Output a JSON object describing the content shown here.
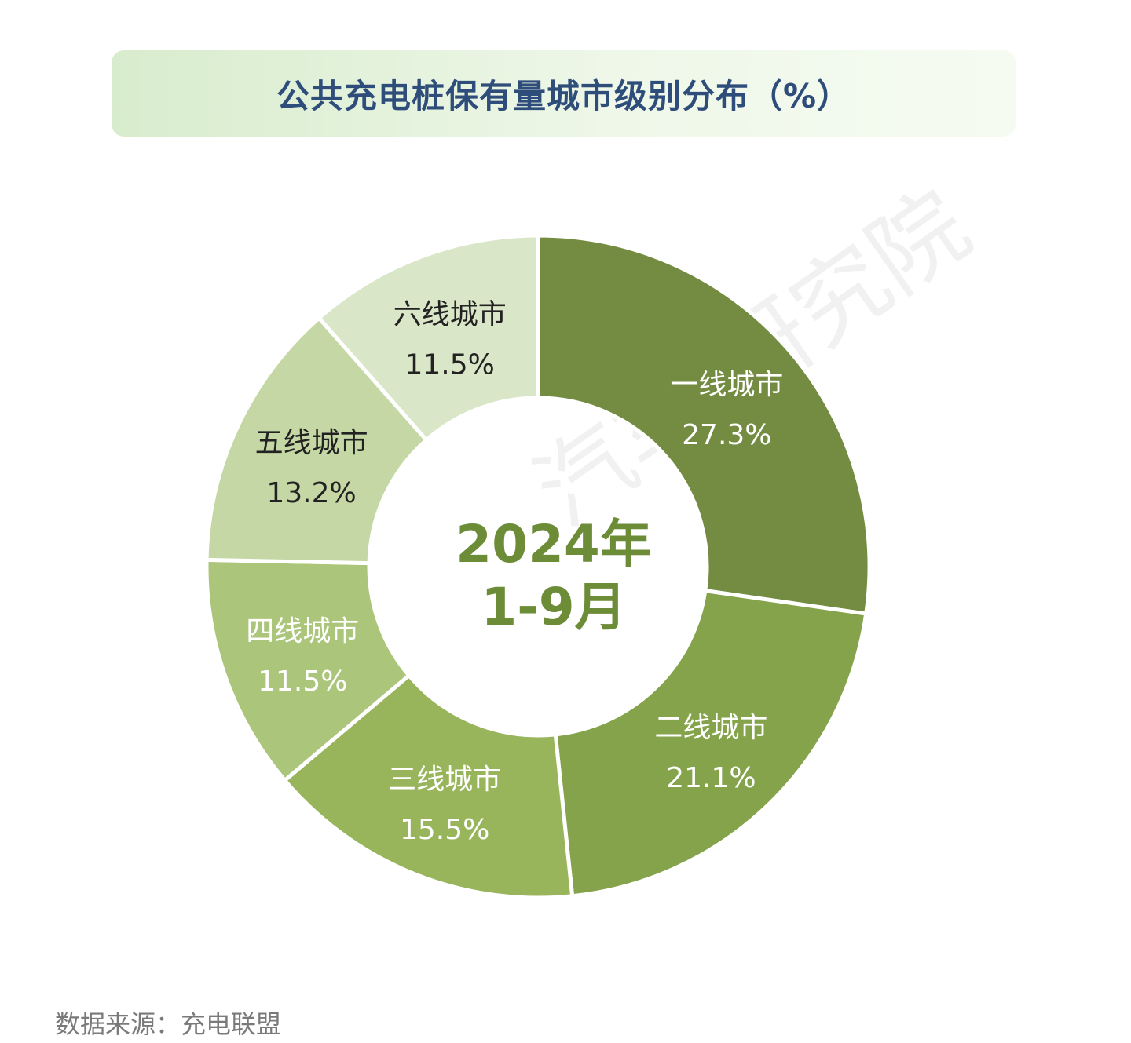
{
  "chart_data": {
    "type": "pie",
    "title": "公共充电桩保有量城市级别分布（%）",
    "center_label": [
      "2024年",
      "1-9月"
    ],
    "categories": [
      "一线城市",
      "二线城市",
      "三线城市",
      "四线城市",
      "五线城市",
      "六线城市"
    ],
    "values": [
      27.3,
      21.1,
      15.5,
      11.5,
      13.2,
      11.5
    ],
    "value_labels": [
      "27.3%",
      "21.1%",
      "15.5%",
      "11.5%",
      "13.2%",
      "11.5%"
    ],
    "colors": [
      "#748c41",
      "#85a34b",
      "#98b55b",
      "#abc57a",
      "#c4d7a4",
      "#d9e6c7"
    ],
    "label_colors": [
      "#ffffff",
      "#ffffff",
      "#ffffff",
      "#ffffff",
      "#222222",
      "#222222"
    ],
    "center_color": "#6d8c37"
  },
  "footer": {
    "source": "数据来源：充电联盟"
  },
  "watermark": {
    "text": "汽车 研究院"
  }
}
